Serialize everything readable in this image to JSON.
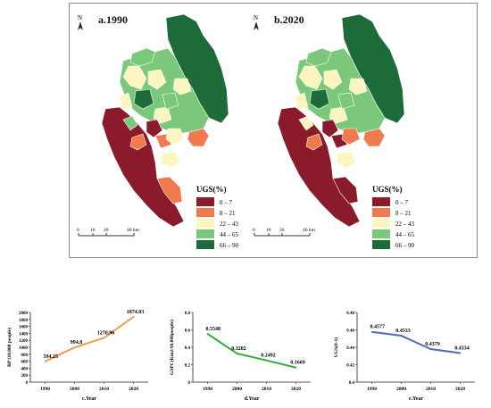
{
  "maps": {
    "panel_a_title": "a.1990",
    "panel_b_title": "b.2020",
    "north_label": "N",
    "scale_ticks": [
      "0",
      "10",
      "20",
      "40 km"
    ],
    "legend_title": "UGS(%)",
    "legend": [
      {
        "label": "0 – 7",
        "color": "#8b1a2b"
      },
      {
        "label": "8 – 21",
        "color": "#f07a4e"
      },
      {
        "label": "22 – 43",
        "color": "#fbf6bf"
      },
      {
        "label": "44 – 65",
        "color": "#7bc87a"
      },
      {
        "label": "66 – 90",
        "color": "#1e6b3a"
      }
    ]
  },
  "chart_data": [
    {
      "type": "line",
      "ylabel": "RP (10,000 people)",
      "xlabel": "c.Year",
      "x": [
        1990,
        2000,
        2010,
        2020
      ],
      "values": [
        594.25,
        994.8,
        1270.96,
        1874.03
      ],
      "value_labels": [
        "594.25",
        "994.8",
        "1270.96",
        "1874.03"
      ],
      "ylim": [
        0,
        2000
      ],
      "yticks": [
        "0",
        "200",
        "400",
        "600",
        "800",
        "1000",
        "1200",
        "1400",
        "1600",
        "1800",
        "2000"
      ],
      "xticks": [
        "1990",
        "2000",
        "2010",
        "2020"
      ],
      "color": "#f29b4a"
    },
    {
      "type": "line",
      "ylabel": "GSPC(Km2/10,000people)",
      "xlabel": "d.Year",
      "x": [
        1990,
        2000,
        2010,
        2020
      ],
      "values": [
        0.5548,
        0.3282,
        0.2492,
        0.1669
      ],
      "value_labels": [
        "0.5548",
        "0.3282",
        "0.2492",
        "0.1669"
      ],
      "ylim": [
        0,
        0.8
      ],
      "yticks": [
        "0",
        "0.2",
        "0.4",
        "0.6",
        "0.8"
      ],
      "xticks": [
        "1990",
        "2000",
        "2010",
        "2020"
      ],
      "color": "#2fae3c"
    },
    {
      "type": "line",
      "ylabel": "UGS(0-1)",
      "xlabel": "e.Year",
      "x": [
        1990,
        2000,
        2010,
        2020
      ],
      "values": [
        0.4577,
        0.4533,
        0.4379,
        0.4334
      ],
      "value_labels": [
        "0.4577",
        "0.4533",
        "0.4379",
        "0.4334"
      ],
      "ylim": [
        0.4,
        0.48
      ],
      "yticks": [
        "0.4",
        "0.42",
        "0.44",
        "0.46",
        "0.48"
      ],
      "xticks": [
        "1990",
        "2000",
        "2010",
        "2020"
      ],
      "color": "#4a6fb8"
    }
  ]
}
